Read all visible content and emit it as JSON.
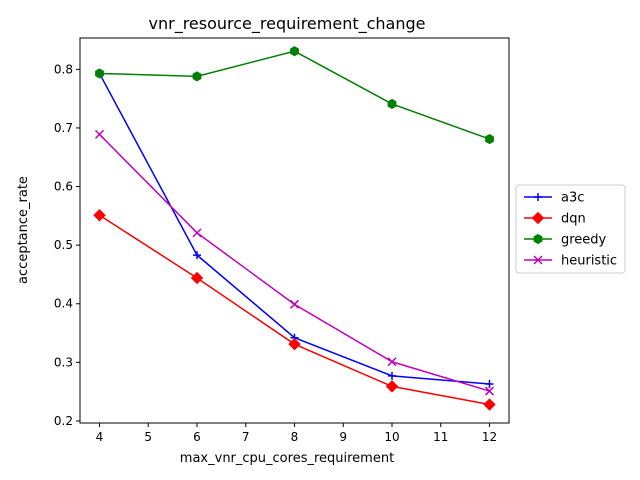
{
  "chart_data": {
    "type": "line",
    "title": "vnr_resource_requirement_change",
    "xlabel": "max_vnr_cpu_cores_requirement",
    "ylabel": "acceptance_rate",
    "x": [
      4,
      6,
      8,
      10,
      12
    ],
    "xlim": [
      3.6,
      12.4
    ],
    "ylim": [
      0.1965,
      0.8535
    ],
    "xticks": [
      4,
      5,
      6,
      7,
      8,
      9,
      10,
      11,
      12
    ],
    "yticks": [
      0.2,
      0.3,
      0.4,
      0.5,
      0.6,
      0.7,
      0.8
    ],
    "grid": false,
    "legend_position": "center-right-outside",
    "series": [
      {
        "name": "a3c",
        "color": "#0000ff",
        "marker": "plus",
        "values": [
          0.793,
          0.483,
          0.342,
          0.277,
          0.263
        ]
      },
      {
        "name": "dqn",
        "color": "#ff0000",
        "marker": "diamond",
        "values": [
          0.551,
          0.444,
          0.331,
          0.259,
          0.228
        ]
      },
      {
        "name": "greedy",
        "color": "#008000",
        "marker": "hexagon",
        "values": [
          0.793,
          0.788,
          0.831,
          0.741,
          0.681
        ]
      },
      {
        "name": "heuristic",
        "color": "#bf00bf",
        "marker": "x",
        "values": [
          0.689,
          0.521,
          0.399,
          0.301,
          0.251
        ]
      }
    ]
  }
}
